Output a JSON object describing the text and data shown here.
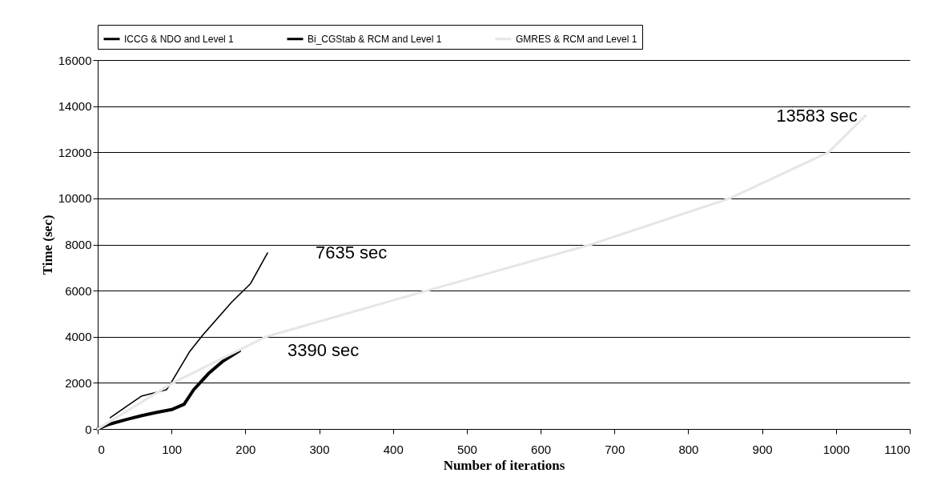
{
  "chart_data": {
    "type": "line",
    "xlabel": "Number of iterations",
    "ylabel": "Time (sec)",
    "series": [
      {
        "name": "ICCG & NDO and Level 1",
        "color": "#000000",
        "x": [
          0,
          15,
          40,
          60,
          80,
          100,
          117,
          130,
          150,
          170,
          192
        ],
        "values": [
          0,
          200,
          420,
          580,
          720,
          840,
          1070,
          1700,
          2400,
          2950,
          3390
        ]
      },
      {
        "name": "Bi_CGStab & RCM and Level 1",
        "color": "#000000",
        "x": [
          17,
          40,
          59,
          93,
          99,
          124,
          142,
          182,
          207,
          230
        ],
        "values": [
          490,
          1000,
          1420,
          1700,
          1980,
          3330,
          4060,
          5520,
          6300,
          7635
        ]
      },
      {
        "name": "GMRES & RCM and Level 1",
        "color": "#e6e6e6",
        "x": [
          0,
          102,
          228,
          446,
          668,
          856,
          990,
          1040
        ],
        "values": [
          0,
          2000,
          4000,
          6000,
          8000,
          10000,
          12000,
          13583
        ]
      }
    ],
    "annotations": [
      {
        "text": "3390 sec",
        "x": 192,
        "y": 3390
      },
      {
        "text": "7635 sec",
        "x": 230,
        "y": 7635
      },
      {
        "text": "13583 sec",
        "x": 1040,
        "y": 13583
      }
    ],
    "xlim": [
      0,
      1100
    ],
    "xticks": [
      0,
      100,
      200,
      300,
      400,
      500,
      600,
      700,
      800,
      900,
      1000,
      1100
    ],
    "ylim": [
      0,
      16000
    ],
    "yticks": [
      0,
      2000,
      4000,
      6000,
      8000,
      10000,
      12000,
      14000,
      16000
    ],
    "grid": "y",
    "legend": "top",
    "marker": "none",
    "line_style": "solid"
  }
}
